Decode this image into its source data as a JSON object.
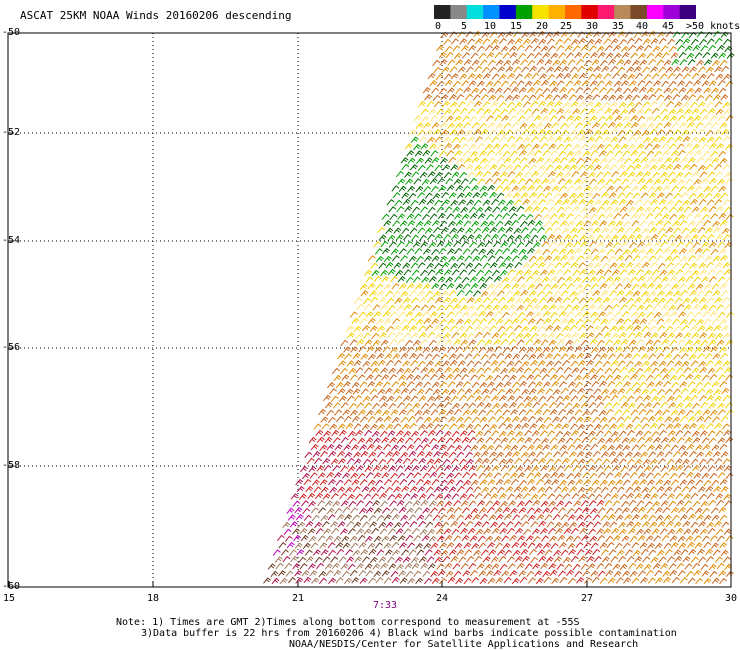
{
  "title": "ASCAT 25KM NOAA Winds 20160206 descending",
  "legend": {
    "labels": [
      "0",
      "5",
      "10",
      "15",
      "20",
      "25",
      "30",
      "35",
      "40",
      "45",
      ">50 knots"
    ],
    "colors": [
      "#222222",
      "#888888",
      "#00dede",
      "#0090ff",
      "#0000cc",
      "#00a000",
      "#f7e300",
      "#ffb000",
      "#ff6a00",
      "#e00000",
      "#ff1a70",
      "#b8895a",
      "#7a4a2a",
      "#ff00ff",
      "#a000d8",
      "#3a0080"
    ]
  },
  "y_axis": {
    "labels": [
      "-50",
      "-52",
      "-54",
      "-56",
      "-58",
      "-60"
    ],
    "values": [
      -50,
      -52,
      -54,
      -56,
      -58,
      -60
    ]
  },
  "x_axis": {
    "labels": [
      "15",
      "18",
      "21",
      "24",
      "27",
      "30"
    ],
    "values": [
      15,
      18,
      21,
      24,
      27,
      30
    ]
  },
  "pass_time": "7:33",
  "notes": {
    "line1": "Note: 1) Times are GMT 2)Times along bottom correspond to measurement at -55S",
    "line2": "3)Data buffer is 22 hrs from 20160206 4) Black wind barbs indicate possible contamination",
    "line3": "NOAA/NESDIS/Center for Satellite Applications and Research"
  },
  "swath_colors": {
    "calm_yellow": "#f2d200",
    "pale_yellow": "#ffe47a",
    "orange": "#e08a00",
    "dark_orange": "#c8641a",
    "green": "#00a000",
    "dark_green": "#006400",
    "red": "#d02020",
    "crimson": "#b0104a",
    "tan": "#a0785a",
    "brown": "#6a3a20",
    "magenta": "#c000c0"
  }
}
